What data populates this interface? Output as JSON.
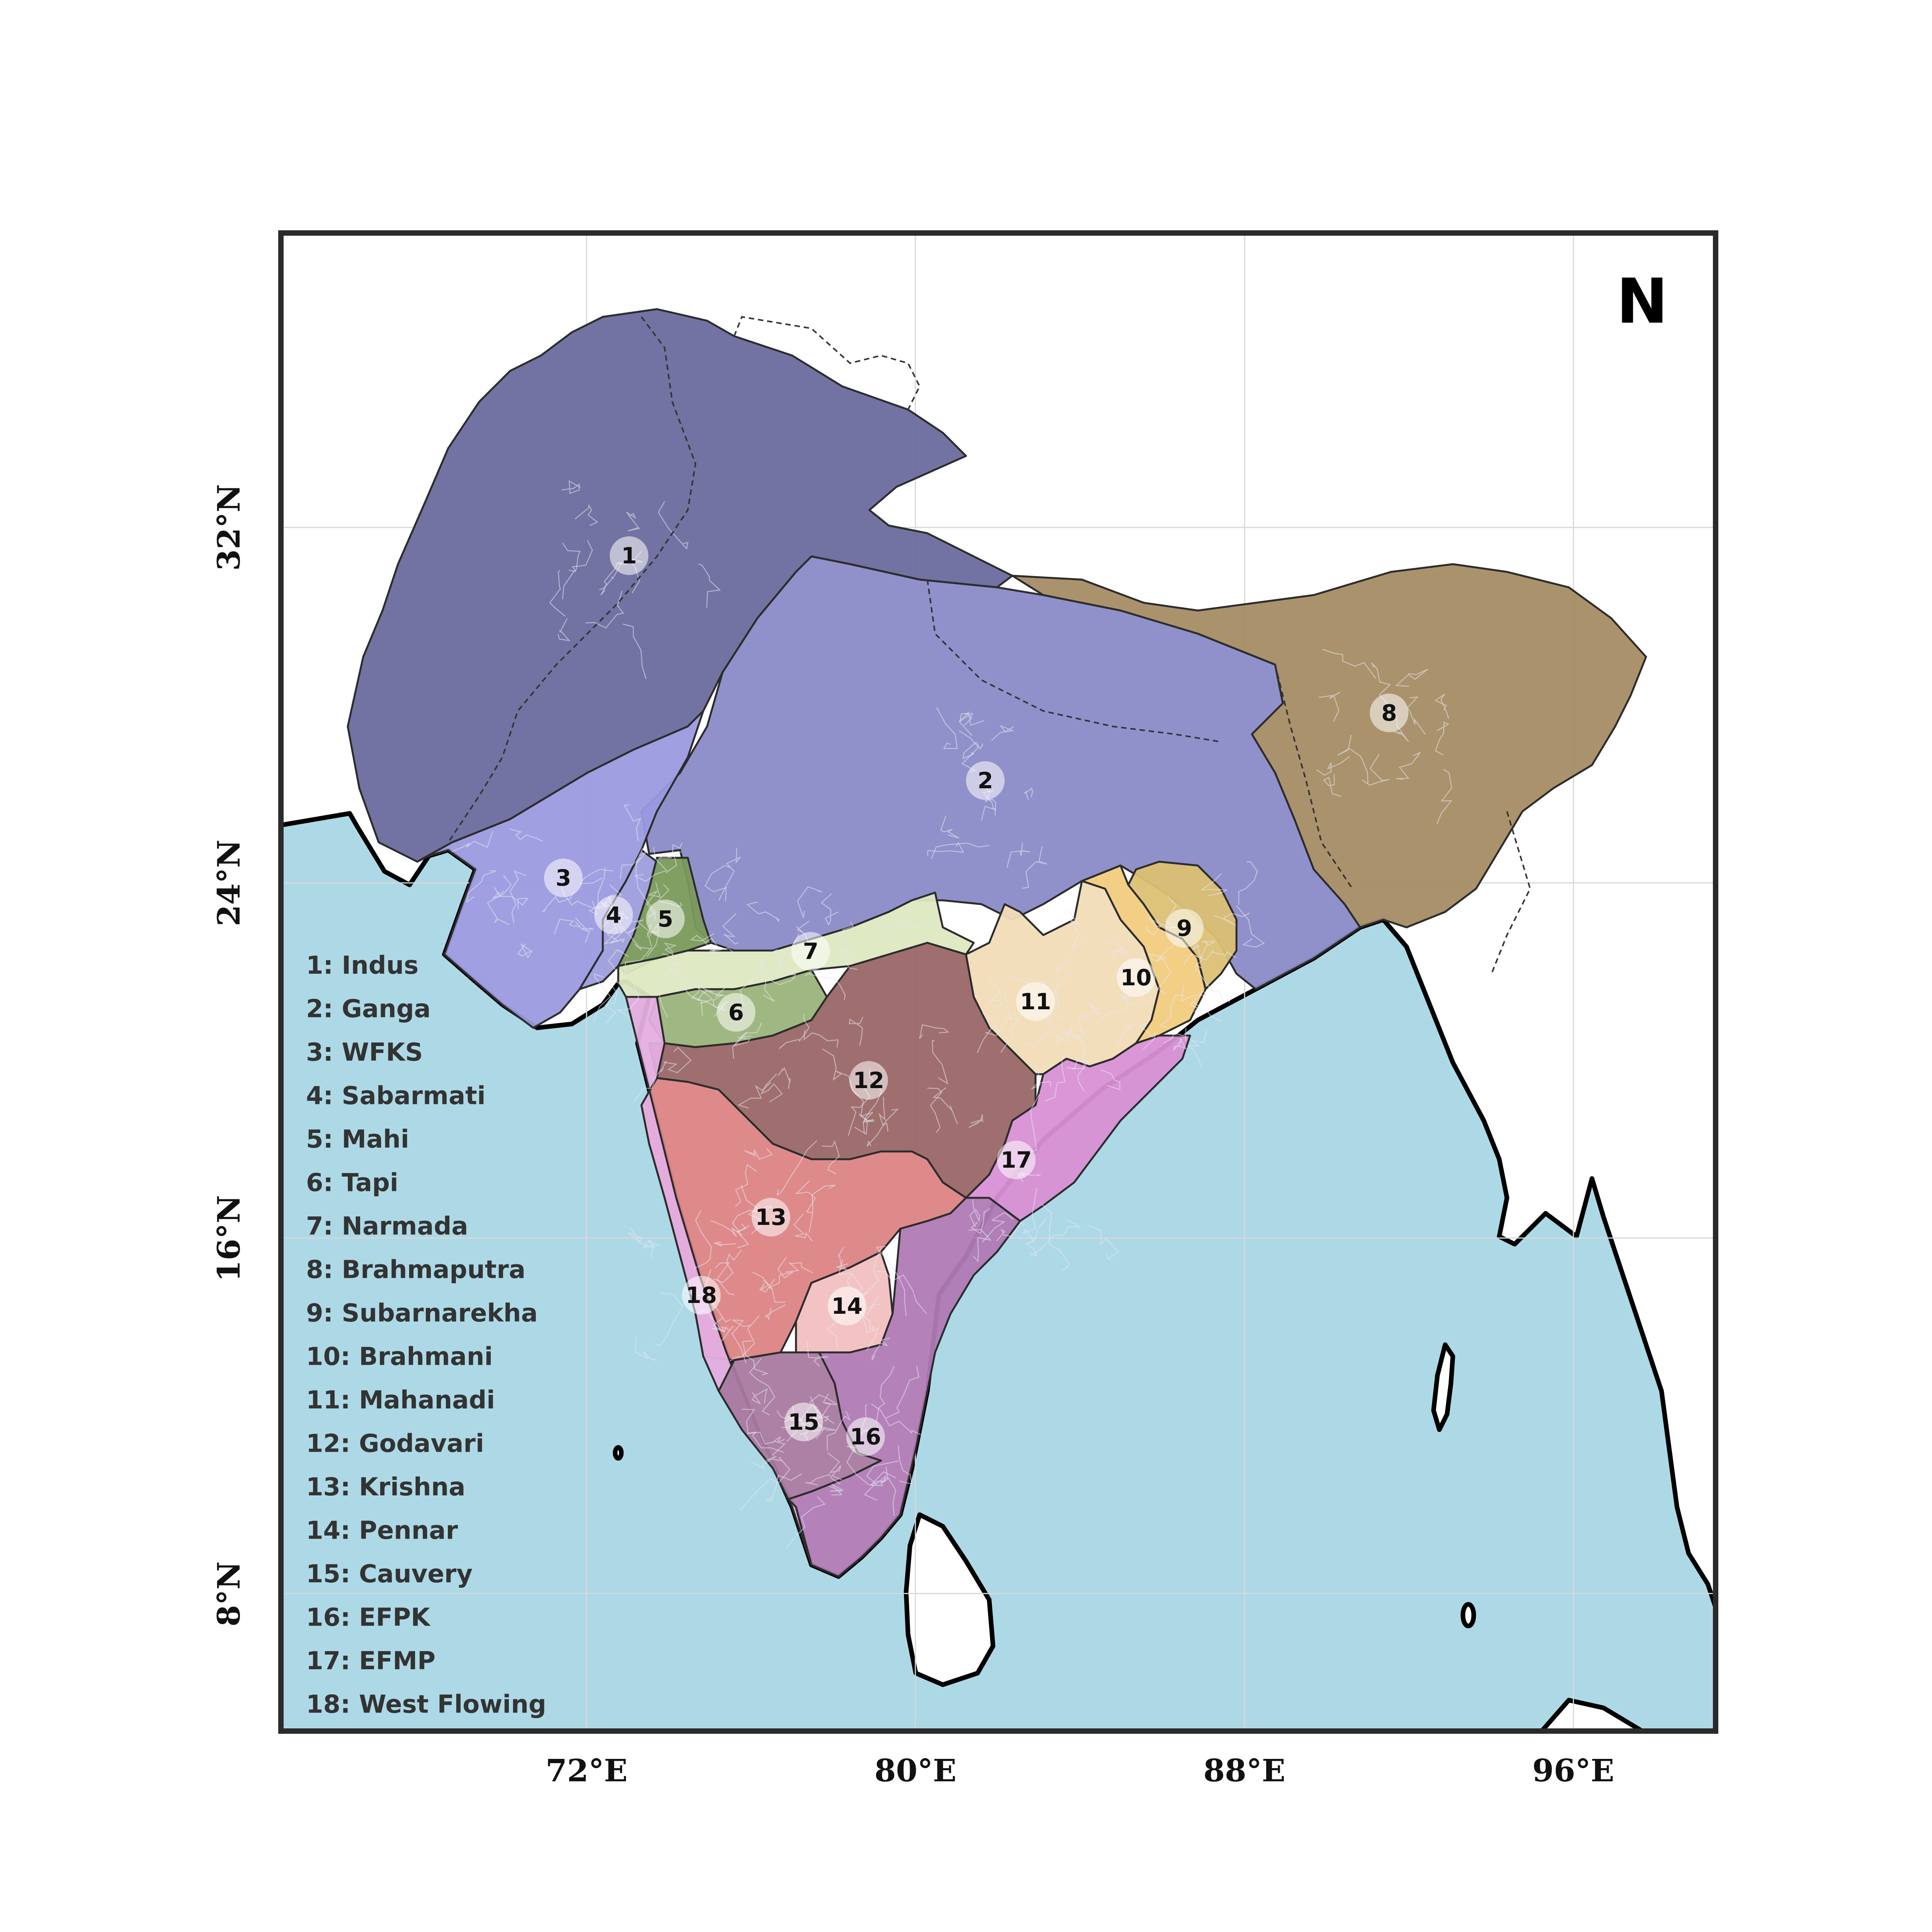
{
  "map": {
    "north_label": "N",
    "lon_ticks": [
      {
        "label": "72°E",
        "lon": 72
      },
      {
        "label": "80°E",
        "lon": 80
      },
      {
        "label": "88°E",
        "lon": 88
      },
      {
        "label": "96°E",
        "lon": 96
      }
    ],
    "lat_ticks": [
      {
        "label": "32°N",
        "lat": 32
      },
      {
        "label": "24°N",
        "lat": 24
      },
      {
        "label": "16°N",
        "lat": 16
      },
      {
        "label": "8°N",
        "lat": 8
      }
    ],
    "colors": {
      "sea": "#add8e6",
      "land": "#ffffff",
      "frame": "#2b2b2b"
    },
    "basins": [
      {
        "id": "1",
        "name": "Indus",
        "color": "#6b6b9e"
      },
      {
        "id": "2",
        "name": "Ganga",
        "color": "#8a8ac8"
      },
      {
        "id": "3",
        "name": "WFKS",
        "color": "#9a9ae0"
      },
      {
        "id": "4",
        "name": "Sabarmati",
        "color": "#9d9ddc"
      },
      {
        "id": "5",
        "name": "Mahi",
        "color": "#7a9a5a"
      },
      {
        "id": "6",
        "name": "Tapi",
        "color": "#9ab47a"
      },
      {
        "id": "7",
        "name": "Narmada",
        "color": "#dde8c0"
      },
      {
        "id": "8",
        "name": "Brahmaputra",
        "color": "#a58c64"
      },
      {
        "id": "9",
        "name": "Subarnarekha",
        "color": "#dcc074"
      },
      {
        "id": "10",
        "name": "Brahmani",
        "color": "#f2cc80"
      },
      {
        "id": "11",
        "name": "Mahanadi",
        "color": "#f2dcb8"
      },
      {
        "id": "12",
        "name": "Godavari",
        "color": "#9a6666"
      },
      {
        "id": "13",
        "name": "Krishna",
        "color": "#dc8484"
      },
      {
        "id": "14",
        "name": "Pennar",
        "color": "#f2c0c0"
      },
      {
        "id": "15",
        "name": "Cauvery",
        "color": "#a87aa0"
      },
      {
        "id": "16",
        "name": "EFPK",
        "color": "#b07ab4"
      },
      {
        "id": "17",
        "name": "EFMP",
        "color": "#d890d4"
      },
      {
        "id": "18",
        "name": "West Flowing",
        "color": "#e4aee0"
      }
    ],
    "legend": [
      "1: Indus",
      "2: Ganga",
      "3: WFKS",
      "4: Sabarmati",
      "5: Mahi",
      "6: Tapi",
      "7: Narmada",
      "8: Brahmaputra",
      "9: Subarnarekha",
      "10: Brahmani",
      "11: Mahanadi",
      "12: Godavari",
      "13: Krishna",
      "14: Pennar",
      "15: Cauvery",
      "16: EFPK",
      "17: EFMP",
      "18: West Flowing"
    ]
  }
}
